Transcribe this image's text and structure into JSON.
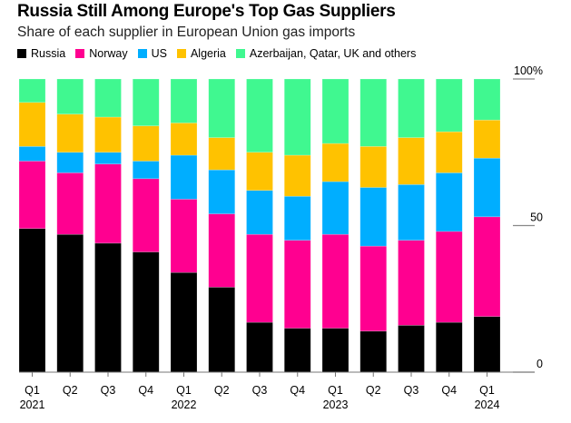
{
  "chart_data": {
    "type": "bar",
    "stacked": true,
    "title": "Russia Still Among Europe's Top Gas Suppliers",
    "subtitle": "Share of each supplier in European Union gas imports",
    "xlabel": "",
    "ylabel": "",
    "ylim": [
      0,
      100
    ],
    "y_ticks": [
      {
        "value": 100,
        "label": "100%"
      },
      {
        "value": 50,
        "label": "50"
      },
      {
        "value": 0,
        "label": "0"
      }
    ],
    "y_axis_position": "right",
    "grid": false,
    "legend_position": "top-left",
    "categories": [
      "Q1 2021",
      "Q2 2021",
      "Q3 2021",
      "Q4 2021",
      "Q1 2022",
      "Q2 2022",
      "Q3 2022",
      "Q4 2022",
      "Q1 2023",
      "Q2 2023",
      "Q3 2023",
      "Q4 2023",
      "Q1 2024"
    ],
    "x_tick_labels": [
      {
        "line1": "Q1",
        "line2": "2021"
      },
      {
        "line1": "Q2",
        "line2": ""
      },
      {
        "line1": "Q3",
        "line2": ""
      },
      {
        "line1": "Q4",
        "line2": ""
      },
      {
        "line1": "Q1",
        "line2": "2022"
      },
      {
        "line1": "Q2",
        "line2": ""
      },
      {
        "line1": "Q3",
        "line2": ""
      },
      {
        "line1": "Q4",
        "line2": ""
      },
      {
        "line1": "Q1",
        "line2": "2023"
      },
      {
        "line1": "Q2",
        "line2": ""
      },
      {
        "line1": "Q3",
        "line2": ""
      },
      {
        "line1": "Q4",
        "line2": ""
      },
      {
        "line1": "Q1",
        "line2": "2024"
      }
    ],
    "series": [
      {
        "name": "Russia",
        "color": "#000000",
        "values": [
          49,
          47,
          44,
          41,
          34,
          29,
          17,
          15,
          15,
          14,
          16,
          17,
          19
        ]
      },
      {
        "name": "Norway",
        "color": "#FF0090",
        "values": [
          23,
          21,
          27,
          25,
          25,
          25,
          30,
          30,
          32,
          29,
          29,
          31,
          34
        ]
      },
      {
        "name": "US",
        "color": "#00AEFF",
        "values": [
          5,
          7,
          4,
          6,
          15,
          15,
          15,
          15,
          18,
          20,
          19,
          20,
          20
        ]
      },
      {
        "name": "Algeria",
        "color": "#FFC200",
        "values": [
          15,
          13,
          12,
          12,
          11,
          11,
          13,
          14,
          13,
          14,
          16,
          14,
          13
        ]
      },
      {
        "name": "Azerbaijan, Qatar, UK and others",
        "color": "#40F890",
        "values": [
          8,
          12,
          13,
          16,
          15,
          20,
          25,
          26,
          22,
          23,
          20,
          18,
          14
        ]
      }
    ]
  }
}
